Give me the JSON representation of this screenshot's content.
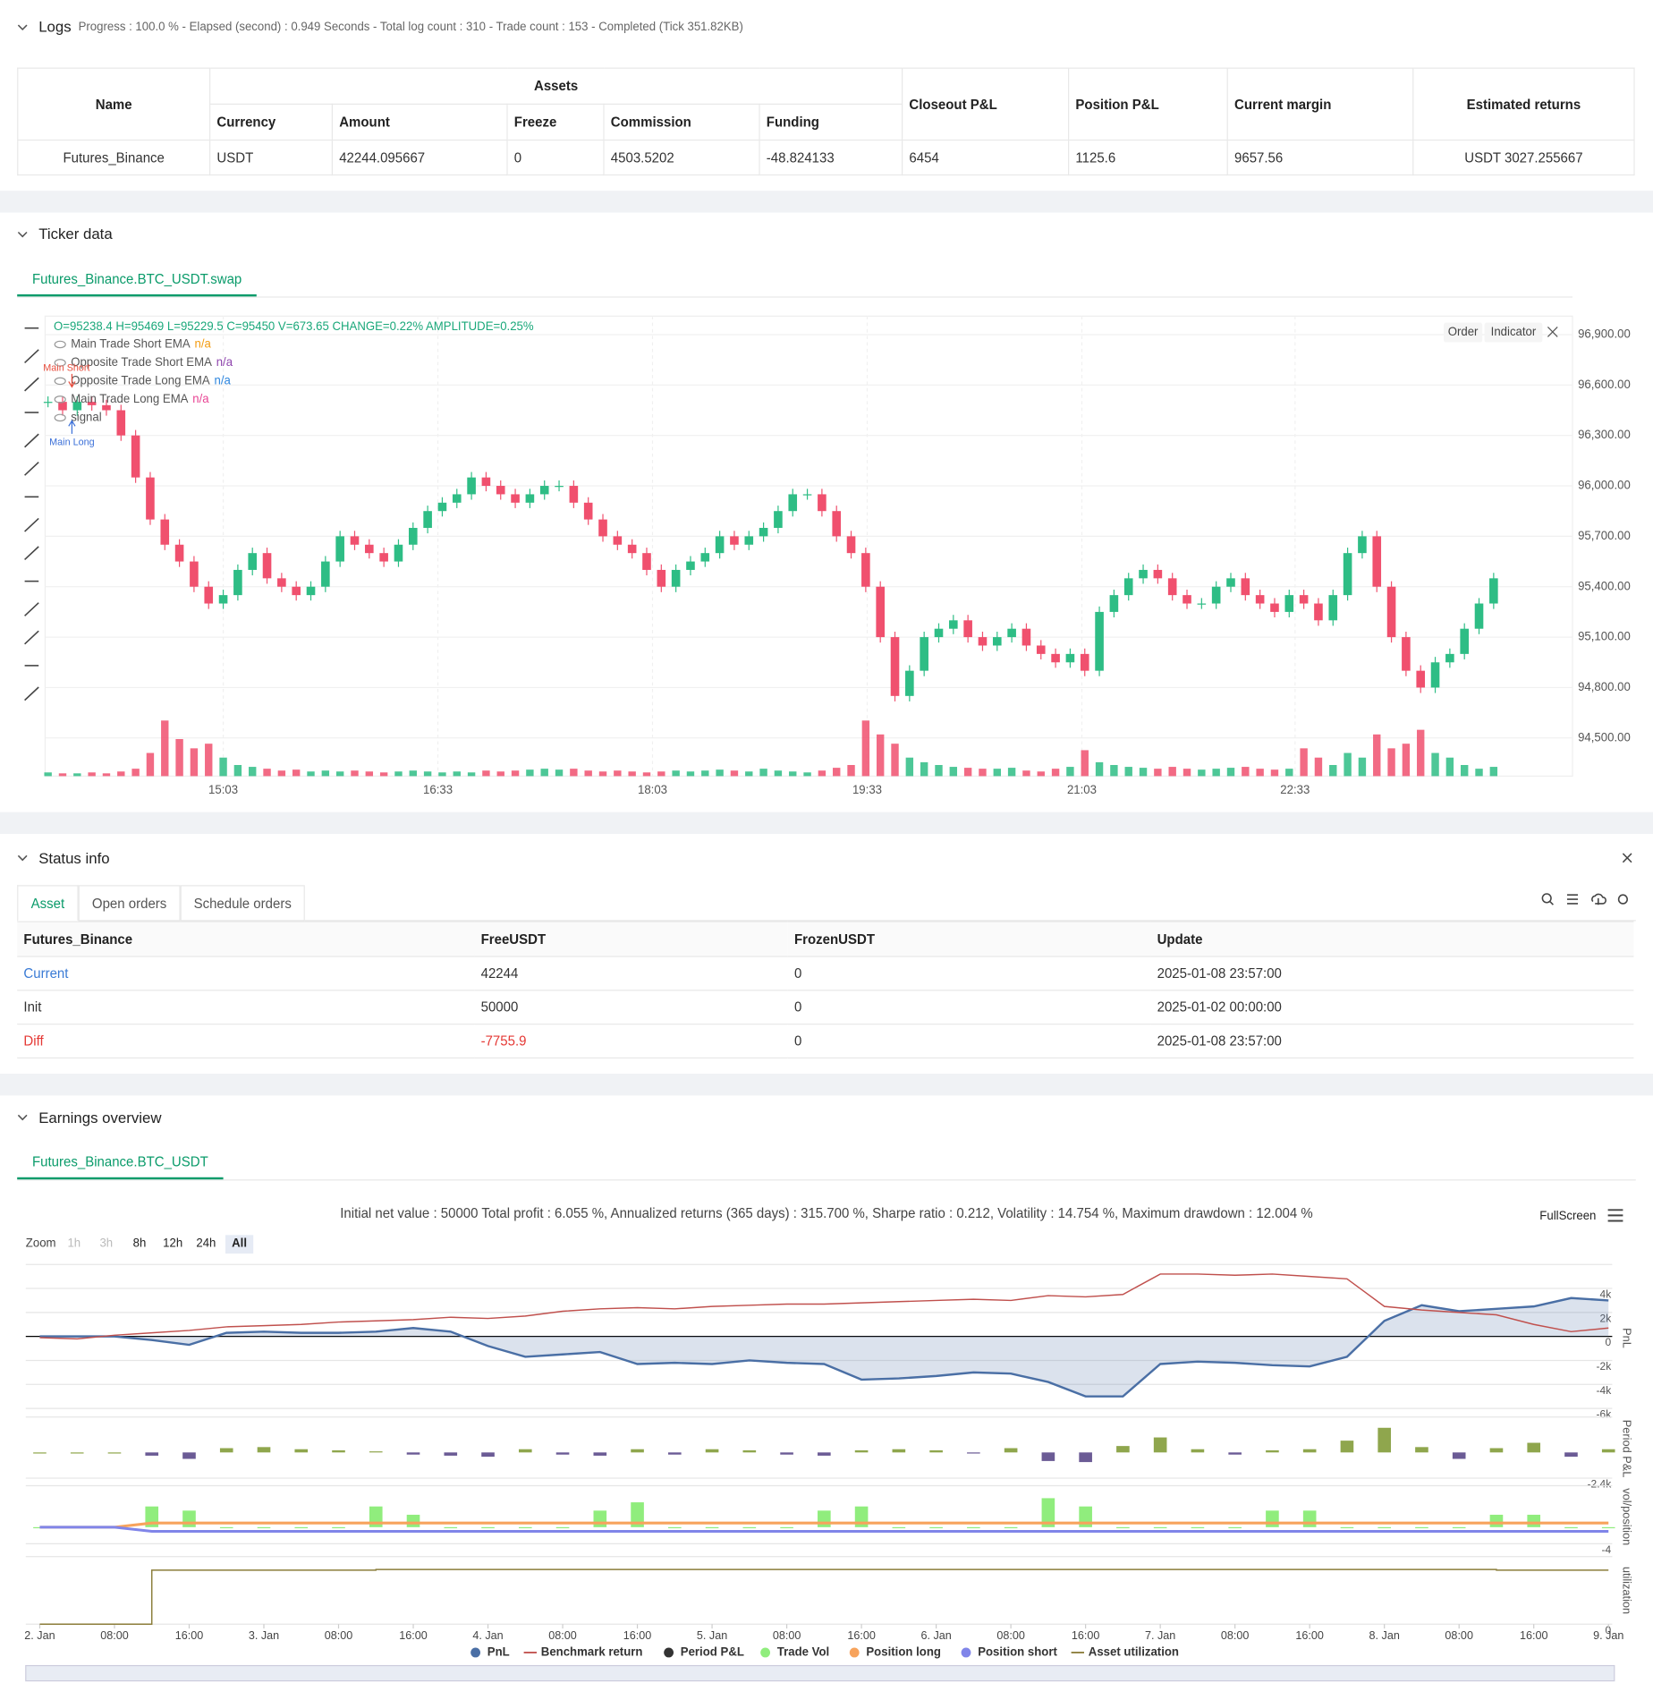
{
  "logs": {
    "title": "Logs",
    "summary": "Progress : 100.0 % - Elapsed (second) : 0.949 Seconds - Total log count : 310 - Trade count : 153 - Completed (Tick 351.82KB)",
    "table": {
      "group": "Assets",
      "headers": [
        "Name",
        "Currency",
        "Amount",
        "Freeze",
        "Commission",
        "Funding",
        "Closeout P&L",
        "Position P&L",
        "Current margin",
        "Estimated returns"
      ],
      "rows": [
        [
          "Futures_Binance",
          "USDT",
          "42244.095667",
          "0",
          "4503.5202",
          "-48.824133",
          "6454",
          "1125.6",
          "9657.56",
          "USDT 3027.255667"
        ]
      ]
    }
  },
  "ticker": {
    "title": "Ticker data",
    "tab": "Futures_Binance.BTC_USDT.swap",
    "buttons": [
      "Order",
      "Indicator"
    ],
    "chart": {
      "type": "candlestick",
      "info": "O=95238.4 H=95469 L=95229.5 C=95450 V=673.65 CHANGE=0.22% AMPLITUDE=0.25%",
      "legend": [
        {
          "name": "Main Trade Short EMA",
          "value": "n/a",
          "color": "#f39c12"
        },
        {
          "name": "Opposite Trade Short EMA",
          "value": "n/a",
          "color": "#8e44ad"
        },
        {
          "name": "Opposite Trade Long EMA",
          "value": "n/a",
          "color": "#2e86de"
        },
        {
          "name": "Main Trade Long EMA",
          "value": "n/a",
          "color": "#e84393"
        },
        {
          "name": "signal"
        }
      ],
      "annotations": [
        {
          "text": "Main Short",
          "color": "#e74c3c"
        },
        {
          "text": "Main Long",
          "color": "#3a6fd8"
        }
      ],
      "close": [
        96500,
        96450,
        96500,
        96480,
        96450,
        96300,
        96050,
        95800,
        95650,
        95550,
        95400,
        95300,
        95350,
        95500,
        95600,
        95450,
        95400,
        95350,
        95400,
        95550,
        95700,
        95650,
        95600,
        95550,
        95650,
        95750,
        95850,
        95900,
        95950,
        96050,
        96000,
        95950,
        95900,
        95950,
        96000,
        96000,
        95900,
        95800,
        95700,
        95650,
        95600,
        95500,
        95400,
        95500,
        95550,
        95600,
        95700,
        95650,
        95700,
        95750,
        95850,
        95950,
        95950,
        95850,
        95700,
        95600,
        95400,
        95100,
        94750,
        94900,
        95100,
        95150,
        95200,
        95100,
        95050,
        95100,
        95150,
        95050,
        95000,
        94950,
        95000,
        94900,
        95250,
        95350,
        95450,
        95500,
        95450,
        95350,
        95300,
        95300,
        95400,
        95450,
        95350,
        95300,
        95250,
        95350,
        95300,
        95200,
        95350,
        95600,
        95700,
        95400,
        95100,
        94900,
        94800,
        94950,
        95000,
        95150,
        95300,
        95450
      ],
      "volume": [
        4,
        3,
        3,
        4,
        3,
        5,
        8,
        25,
        60,
        40,
        30,
        35,
        20,
        12,
        10,
        8,
        6,
        7,
        5,
        6,
        5,
        6,
        5,
        4,
        5,
        6,
        5,
        4,
        5,
        4,
        6,
        5,
        6,
        7,
        8,
        7,
        8,
        6,
        5,
        6,
        5,
        4,
        5,
        6,
        5,
        6,
        7,
        6,
        5,
        8,
        6,
        5,
        4,
        6,
        9,
        12,
        60,
        45,
        35,
        20,
        15,
        12,
        10,
        9,
        8,
        8,
        9,
        6,
        5,
        8,
        10,
        28,
        15,
        12,
        10,
        9,
        8,
        10,
        8,
        7,
        8,
        9,
        10,
        8,
        7,
        8,
        30,
        20,
        12,
        25,
        20,
        45,
        30,
        35,
        50,
        25,
        20,
        12,
        8,
        10
      ],
      "up_color": "#2ebd85",
      "down_color": "#f0506e",
      "grid": true,
      "xlim": [
        -0.2,
        104.4
      ],
      "xticks": [
        {
          "value": 12,
          "label": "15:03"
        },
        {
          "value": 26.7,
          "label": "16:33"
        },
        {
          "value": 41.4,
          "label": "18:03"
        },
        {
          "value": 56.1,
          "label": "19:33"
        },
        {
          "value": 70.8,
          "label": "21:03"
        },
        {
          "value": 85.4,
          "label": "22:33"
        }
      ],
      "ylim": [
        94273,
        97010
      ],
      "yticks": [
        {
          "value": 94500,
          "label": "94,500.00"
        },
        {
          "value": 94800,
          "label": "94,800.00"
        },
        {
          "value": 95100,
          "label": "95,100.00"
        },
        {
          "value": 95400,
          "label": "95,400.00"
        },
        {
          "value": 95700,
          "label": "95,700.00"
        },
        {
          "value": 96000,
          "label": "96,000.00"
        },
        {
          "value": 96300,
          "label": "96,300.00"
        },
        {
          "value": 96600,
          "label": "96,600.00"
        },
        {
          "value": 96900,
          "label": "96,900.00"
        }
      ]
    }
  },
  "status": {
    "title": "Status info",
    "tabs": [
      "Asset",
      "Open orders",
      "Schedule orders"
    ],
    "table": {
      "headers": [
        "Futures_Binance",
        "FreeUSDT",
        "FrozenUSDT",
        "Update"
      ],
      "rows": [
        [
          "Current",
          "42244",
          "0",
          "2025-01-08 23:57:00"
        ],
        [
          "Init",
          "50000",
          "0",
          "2025-01-02 00:00:00"
        ],
        [
          "Diff",
          "-7755.9",
          "0",
          "2025-01-08 23:57:00"
        ]
      ]
    }
  },
  "earnings": {
    "title": "Earnings overview",
    "tab": "Futures_Binance.BTC_USDT",
    "stats": "Initial net value : 50000 Total profit : 6.055 %, Annualized returns (365 days) : 315.700 %, Sharpe ratio : 0.212, Volatility : 14.754 %, Maximum drawdown : 12.004 %",
    "fullscreen": "FullScreen",
    "zoom": {
      "label": "Zoom",
      "buttons": [
        "1h",
        "3h",
        "8h",
        "12h",
        "24h",
        "All"
      ],
      "disabled": [
        0,
        1
      ],
      "active": 5
    },
    "chart": {
      "type": "line",
      "x": [
        0,
        4,
        8,
        12,
        16,
        20,
        24,
        28,
        32,
        36,
        40,
        44,
        48,
        52,
        56,
        60,
        64,
        68,
        72,
        76,
        80,
        84,
        88,
        92,
        96,
        100,
        104,
        108,
        112,
        116,
        120,
        124,
        128,
        132,
        136,
        140,
        144,
        148,
        152,
        156,
        160,
        164,
        168
      ],
      "xlim": [
        -1.5,
        168.4
      ],
      "xticks": [
        {
          "value": 0,
          "label": "2. Jan"
        },
        {
          "value": 8,
          "label": "08:00"
        },
        {
          "value": 16,
          "label": "16:00"
        },
        {
          "value": 24,
          "label": "3. Jan"
        },
        {
          "value": 32,
          "label": "08:00"
        },
        {
          "value": 40,
          "label": "16:00"
        },
        {
          "value": 48,
          "label": "4. Jan"
        },
        {
          "value": 56,
          "label": "08:00"
        },
        {
          "value": 64,
          "label": "16:00"
        },
        {
          "value": 72,
          "label": "5. Jan"
        },
        {
          "value": 80,
          "label": "08:00"
        },
        {
          "value": 88,
          "label": "16:00"
        },
        {
          "value": 96,
          "label": "6. Jan"
        },
        {
          "value": 104,
          "label": "08:00"
        },
        {
          "value": 112,
          "label": "16:00"
        },
        {
          "value": 120,
          "label": "7. Jan"
        },
        {
          "value": 128,
          "label": "08:00"
        },
        {
          "value": 136,
          "label": "16:00"
        },
        {
          "value": 144,
          "label": "8. Jan"
        },
        {
          "value": 152,
          "label": "08:00"
        },
        {
          "value": 160,
          "label": "16:00"
        },
        {
          "value": 168,
          "label": "9. Jan"
        }
      ],
      "series": [
        {
          "name": "PnL",
          "color": "#4a6fa5",
          "type": "area",
          "axis": "y",
          "values": [
            0,
            0,
            0,
            -300,
            -700,
            300,
            400,
            300,
            300,
            400,
            700,
            400,
            -800,
            -1700,
            -1500,
            -1300,
            -2300,
            -2200,
            -2300,
            -2000,
            -2200,
            -2300,
            -3600,
            -3500,
            -3300,
            -3000,
            -3100,
            -3800,
            -5000,
            -5000,
            -2300,
            -2100,
            -2200,
            -2400,
            -2500,
            -1700,
            1300,
            2600,
            2100,
            2300,
            2500,
            3200,
            3000
          ]
        },
        {
          "name": "Benchmark return",
          "color": "#c0504d",
          "type": "line",
          "axis": "y",
          "values": [
            -100,
            -200,
            100,
            300,
            500,
            800,
            900,
            1000,
            1200,
            1300,
            1400,
            1600,
            1500,
            1700,
            2100,
            2300,
            2400,
            2300,
            2500,
            2600,
            2700,
            2700,
            2800,
            2900,
            3000,
            3100,
            3000,
            3400,
            3300,
            3500,
            5200,
            5200,
            5100,
            5200,
            5000,
            4800,
            2500,
            2200,
            2000,
            1800,
            1000,
            400,
            700
          ]
        },
        {
          "name": "Period P&L",
          "color": "#333333",
          "up_color": "#8fa64d",
          "down_color": "#6b5b95",
          "type": "bar",
          "axis": "y2",
          "values": [
            0,
            0,
            0,
            -300,
            -600,
            400,
            500,
            300,
            200,
            100,
            -200,
            -300,
            -400,
            300,
            -200,
            -300,
            300,
            -200,
            300,
            200,
            -200,
            -300,
            200,
            300,
            200,
            -100,
            400,
            -800,
            -900,
            600,
            1400,
            300,
            -200,
            200,
            300,
            1100,
            2300,
            500,
            -600,
            400,
            900,
            -400,
            300
          ]
        },
        {
          "name": "Trade Vol",
          "color": "#90ed7d",
          "type": "bar",
          "axis": "y3",
          "values": [
            0,
            0,
            0,
            5,
            4,
            0,
            0,
            0,
            0,
            5,
            3,
            0,
            0,
            0,
            0,
            4,
            6,
            0,
            0,
            0,
            0,
            4,
            5,
            0,
            0,
            0,
            0,
            7,
            5,
            0,
            0,
            0,
            0,
            4,
            4,
            0,
            0,
            0,
            0,
            3,
            3,
            0,
            0
          ]
        },
        {
          "name": "Position long",
          "color": "#f7a35c",
          "type": "line",
          "axis": "y3",
          "values": [
            0,
            0,
            0,
            1,
            1,
            1,
            1,
            1,
            1,
            1,
            1,
            1,
            1,
            1,
            1,
            1,
            1,
            1,
            1,
            1,
            1,
            1,
            1,
            1,
            1,
            1,
            1,
            1,
            1,
            1,
            1,
            1,
            1,
            1,
            1,
            1,
            1,
            1,
            1,
            1,
            1,
            1,
            1
          ]
        },
        {
          "name": "Position short",
          "color": "#8085e9",
          "type": "line",
          "axis": "y3",
          "values": [
            0,
            0,
            0,
            -1,
            -1,
            -1,
            -1,
            -1,
            -1,
            -1,
            -1,
            -1,
            -1,
            -1,
            -1,
            -1,
            -1,
            -1,
            -1,
            -1,
            -1,
            -1,
            -1,
            -1,
            -1,
            -1,
            -1,
            -1,
            -1,
            -1,
            -1,
            -1,
            -1,
            -1,
            -1,
            -1,
            -1,
            -1,
            -1,
            -1,
            -1,
            -1,
            -1
          ]
        },
        {
          "name": "Asset utilization",
          "color": "#8b7d3a",
          "type": "step",
          "axis": "y4",
          "values": [
            0,
            0,
            0,
            0.84,
            0.84,
            0.84,
            0.84,
            0.84,
            0.84,
            0.85,
            0.85,
            0.85,
            0.85,
            0.85,
            0.85,
            0.85,
            0.85,
            0.85,
            0.85,
            0.85,
            0.85,
            0.85,
            0.85,
            0.85,
            0.85,
            0.85,
            0.85,
            0.85,
            0.85,
            0.85,
            0.85,
            0.85,
            0.85,
            0.85,
            0.85,
            0.85,
            0.85,
            0.85,
            0.85,
            0.84,
            0.84,
            0.84,
            0.84
          ]
        }
      ],
      "ylim": [
        -6270,
        6000
      ],
      "yticks": [
        {
          "value": 4000,
          "label": "4k"
        },
        {
          "value": 2000,
          "label": "2k"
        },
        0,
        {
          "value": -2000,
          "label": "-2k"
        },
        {
          "value": -4000,
          "label": "-4k"
        },
        {
          "value": -6000,
          "label": "-6k"
        }
      ],
      "ylabel": "PnL",
      "y2lim": [
        -2600,
        3300
      ],
      "y2ticks": [
        {
          "value": -2400,
          "label": "-2.4k"
        }
      ],
      "y2label": "Period P&L",
      "y3lim": [
        -5,
        10
      ],
      "y3ticks": [
        -4
      ],
      "y3label": "vol/position",
      "y4lim": [
        0,
        1.05
      ],
      "y4ticks": [
        0
      ],
      "y4label": "utilization",
      "grid": true
    }
  }
}
